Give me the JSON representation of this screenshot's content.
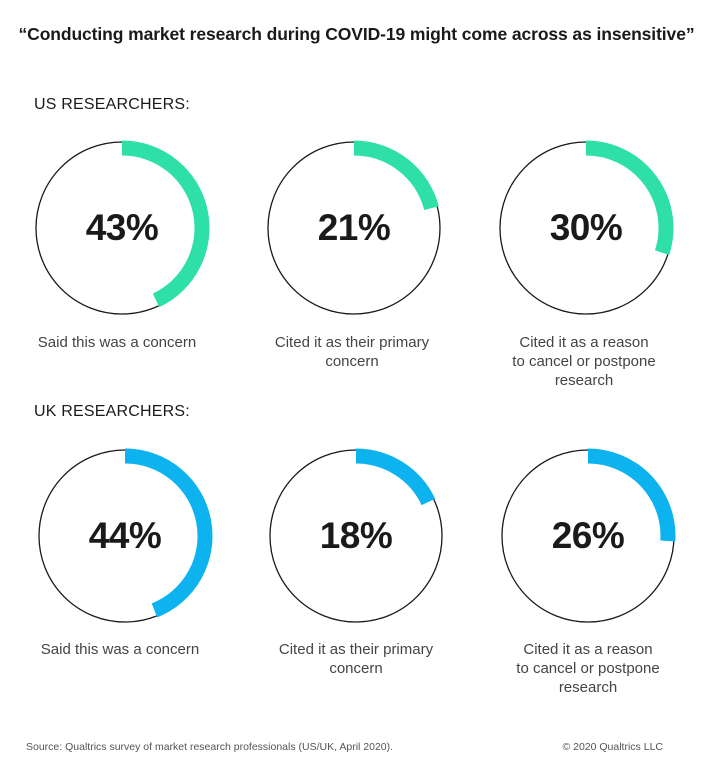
{
  "title": "“Conducting market research during COVID-19 might come across as insensitive”",
  "sections": {
    "us_label": "US RESEARCHERS:",
    "uk_label": "UK RESEARCHERS:"
  },
  "colors": {
    "us_accent": "#2edfa8",
    "uk_accent": "#0db3ef",
    "ring": "#1a1a1a"
  },
  "chart_data": [
    {
      "type": "donut",
      "group": "US RESEARCHERS:",
      "items": [
        {
          "value": 43,
          "label": "43%",
          "caption": "Said this was a concern"
        },
        {
          "value": 21,
          "label": "21%",
          "caption": "Cited it as their primary\nconcern"
        },
        {
          "value": 30,
          "label": "30%",
          "caption": "Cited it as a reason\nto cancel or postpone\nresearch"
        }
      ]
    },
    {
      "type": "donut",
      "group": "UK RESEARCHERS:",
      "items": [
        {
          "value": 44,
          "label": "44%",
          "caption": "Said this was a concern"
        },
        {
          "value": 18,
          "label": "18%",
          "caption": "Cited it as their primary\nconcern"
        },
        {
          "value": 26,
          "label": "26%",
          "caption": "Cited it as a reason\nto cancel or postpone\nresearch"
        }
      ]
    }
  ],
  "footer": {
    "source": "Source: Qualtrics survey of market research professionals (US/UK, April 2020).",
    "copyright": "© 2020 Qualtrics LLC"
  }
}
